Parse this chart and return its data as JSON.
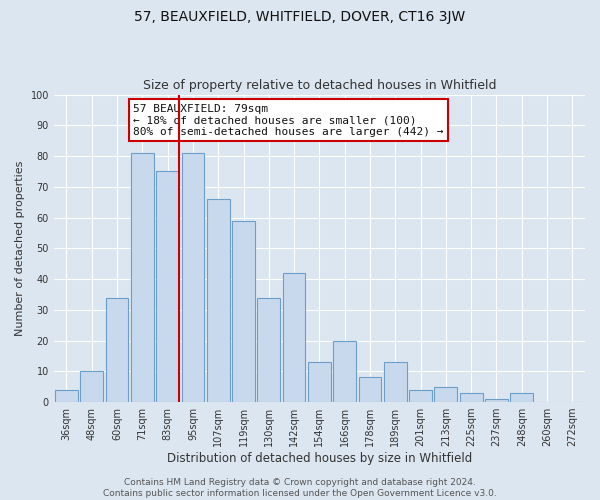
{
  "title": "57, BEAUXFIELD, WHITFIELD, DOVER, CT16 3JW",
  "subtitle": "Size of property relative to detached houses in Whitfield",
  "xlabel": "Distribution of detached houses by size in Whitfield",
  "ylabel": "Number of detached properties",
  "bar_labels": [
    "36sqm",
    "48sqm",
    "60sqm",
    "71sqm",
    "83sqm",
    "95sqm",
    "107sqm",
    "119sqm",
    "130sqm",
    "142sqm",
    "154sqm",
    "166sqm",
    "178sqm",
    "189sqm",
    "201sqm",
    "213sqm",
    "225sqm",
    "237sqm",
    "248sqm",
    "260sqm",
    "272sqm"
  ],
  "bar_values": [
    4,
    10,
    34,
    81,
    75,
    81,
    66,
    59,
    34,
    42,
    13,
    20,
    8,
    13,
    4,
    5,
    3,
    1,
    3,
    0,
    0
  ],
  "bar_color": "#c9d9ed",
  "bar_edge_color": "#6b9fc9",
  "vline_x_index": 4,
  "vline_color": "#cc0000",
  "ylim": [
    0,
    100
  ],
  "yticks": [
    0,
    10,
    20,
    30,
    40,
    50,
    60,
    70,
    80,
    90,
    100
  ],
  "annotation_title": "57 BEAUXFIELD: 79sqm",
  "annotation_line1": "← 18% of detached houses are smaller (100)",
  "annotation_line2": "80% of semi-detached houses are larger (442) →",
  "annotation_box_color": "#ffffff",
  "annotation_box_edge_color": "#cc0000",
  "footer_line1": "Contains HM Land Registry data © Crown copyright and database right 2024.",
  "footer_line2": "Contains public sector information licensed under the Open Government Licence v3.0.",
  "background_color": "#dce6f0",
  "plot_bg_color": "#dce6f0",
  "grid_color": "#ffffff",
  "title_fontsize": 10,
  "subtitle_fontsize": 9,
  "xlabel_fontsize": 8.5,
  "ylabel_fontsize": 8,
  "tick_fontsize": 7,
  "footer_fontsize": 6.5,
  "annotation_fontsize": 8
}
